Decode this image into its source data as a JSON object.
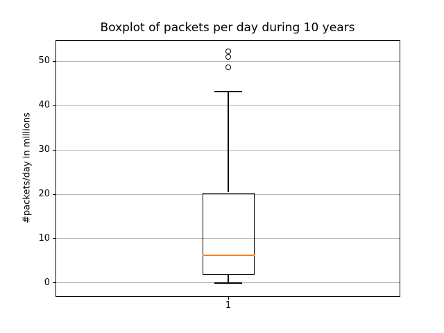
{
  "chart_data": {
    "type": "boxplot",
    "title": "Boxplot of packets per day during 10 years",
    "xlabel": "",
    "ylabel": "#packets/day in millions",
    "categories": [
      "1"
    ],
    "yticks": [
      0,
      10,
      20,
      30,
      40,
      50
    ],
    "ylim": [
      -3.0,
      54.6
    ],
    "grid": "horizontal",
    "legend": false,
    "series": [
      {
        "name": "1",
        "whisker_low": 0.0,
        "q1": 1.9,
        "median": 6.2,
        "q3": 20.4,
        "whisker_high": 43.2,
        "outliers": [
          48.6,
          51.0,
          52.2
        ]
      }
    ],
    "colors": {
      "box": "#000000",
      "median": "#ff7f0e",
      "grid": "#b0b0b0",
      "background": "#ffffff"
    }
  }
}
